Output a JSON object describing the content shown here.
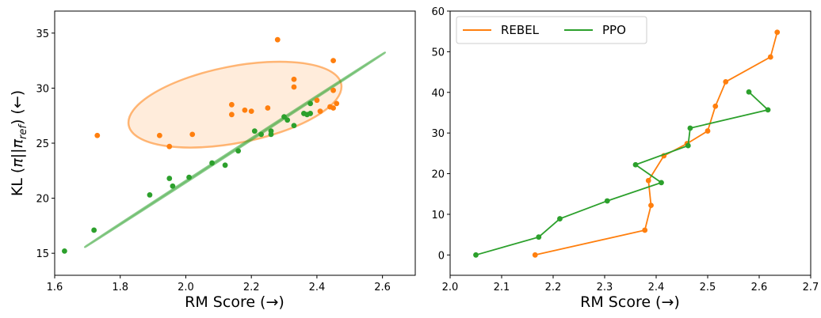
{
  "chart_data": [
    {
      "type": "scatter",
      "xlabel": "RM Score (→)",
      "ylabel_parts": [
        "KL (",
        "π",
        "||",
        "π",
        "ref",
        ") (←)"
      ],
      "xlim": [
        1.6,
        2.7
      ],
      "ylim": [
        13,
        37
      ],
      "xticks": [
        "1.6",
        "1.8",
        "2.0",
        "2.2",
        "2.4",
        "2.6"
      ],
      "yticks": [
        "15",
        "20",
        "25",
        "30",
        "35"
      ],
      "grid": false,
      "series": [
        {
          "color": "#ff7f0e",
          "points": [
            [
              1.73,
              25.7
            ],
            [
              1.92,
              25.7
            ],
            [
              1.95,
              24.7
            ],
            [
              2.02,
              25.8
            ],
            [
              2.14,
              27.6
            ],
            [
              2.14,
              28.5
            ],
            [
              2.18,
              28.0
            ],
            [
              2.2,
              27.9
            ],
            [
              2.25,
              28.2
            ],
            [
              2.28,
              34.4
            ],
            [
              2.33,
              30.8
            ],
            [
              2.33,
              30.1
            ],
            [
              2.4,
              28.9
            ],
            [
              2.41,
              27.9
            ],
            [
              2.44,
              28.3
            ],
            [
              2.45,
              28.2
            ],
            [
              2.45,
              29.8
            ],
            [
              2.45,
              32.5
            ],
            [
              2.46,
              28.6
            ]
          ],
          "ellipse": {
            "center": [
              2.15,
              28.5
            ],
            "x_extent": [
              1.83,
              2.48
            ],
            "y_extent": [
              25.1,
              32.9
            ],
            "angle_deg": -11
          }
        },
        {
          "color": "#2ca02c",
          "points": [
            [
              1.63,
              15.2
            ],
            [
              1.72,
              17.1
            ],
            [
              1.89,
              20.3
            ],
            [
              1.95,
              21.8
            ],
            [
              1.96,
              21.1
            ],
            [
              2.01,
              21.9
            ],
            [
              2.08,
              23.2
            ],
            [
              2.12,
              23.0
            ],
            [
              2.16,
              24.3
            ],
            [
              2.21,
              26.1
            ],
            [
              2.23,
              25.8
            ],
            [
              2.26,
              25.8
            ],
            [
              2.26,
              26.1
            ],
            [
              2.3,
              27.4
            ],
            [
              2.31,
              27.1
            ],
            [
              2.33,
              26.6
            ],
            [
              2.36,
              27.7
            ],
            [
              2.37,
              27.6
            ],
            [
              2.38,
              27.7
            ],
            [
              2.38,
              28.6
            ]
          ],
          "ellipse": {
            "center": [
              2.15,
              24.4
            ],
            "x_extent": [
              1.7,
              2.59
            ],
            "y_extent": [
              17.0,
              31.7
            ],
            "angle_deg": -33
          }
        }
      ]
    },
    {
      "type": "line",
      "xlabel": "RM Score (→)",
      "xlim": [
        2.0,
        2.7
      ],
      "ylim": [
        -5,
        60
      ],
      "xticks": [
        "2.0",
        "2.1",
        "2.2",
        "2.3",
        "2.4",
        "2.5",
        "2.6",
        "2.7"
      ],
      "yticks": [
        "0",
        "10",
        "20",
        "30",
        "40",
        "50",
        "60"
      ],
      "grid": false,
      "legend_position": "top-left",
      "series": [
        {
          "name": "REBEL",
          "color": "#ff7f0e",
          "points": [
            [
              2.165,
              0
            ],
            [
              2.378,
              6.1
            ],
            [
              2.39,
              12.2
            ],
            [
              2.385,
              18.3
            ],
            [
              2.415,
              24.4
            ],
            [
              2.46,
              27.4
            ],
            [
              2.5,
              30.5
            ],
            [
              2.515,
              36.6
            ],
            [
              2.535,
              42.6
            ],
            [
              2.622,
              48.7
            ],
            [
              2.635,
              54.8
            ]
          ]
        },
        {
          "name": "PPO",
          "color": "#2ca02c",
          "points": [
            [
              2.05,
              0
            ],
            [
              2.172,
              4.4
            ],
            [
              2.213,
              8.9
            ],
            [
              2.305,
              13.3
            ],
            [
              2.41,
              17.8
            ],
            [
              2.36,
              22.2
            ],
            [
              2.462,
              26.9
            ],
            [
              2.466,
              31.2
            ],
            [
              2.617,
              35.7
            ],
            [
              2.58,
              40.1
            ]
          ]
        }
      ]
    }
  ]
}
